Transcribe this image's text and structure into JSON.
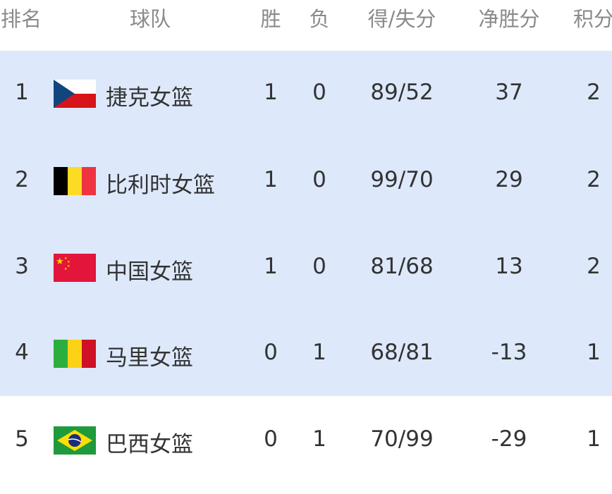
{
  "header": {
    "rank": "排名",
    "team": "球队",
    "wins": "胜",
    "losses": "负",
    "score": "得/失分",
    "diff": "净胜分",
    "points": "积分"
  },
  "colors": {
    "highlight": "#dde9fb",
    "header_text": "#8a8a8a"
  },
  "rows": [
    {
      "rank": "1",
      "team": "捷克女篮",
      "flag": "czech-flag",
      "wins": "1",
      "losses": "0",
      "score": "89/52",
      "diff": "37",
      "points": "2",
      "highlighted": true
    },
    {
      "rank": "2",
      "team": "比利时女篮",
      "flag": "belgium-flag",
      "wins": "1",
      "losses": "0",
      "score": "99/70",
      "diff": "29",
      "points": "2",
      "highlighted": true
    },
    {
      "rank": "3",
      "team": "中国女篮",
      "flag": "china-flag",
      "wins": "1",
      "losses": "0",
      "score": "81/68",
      "diff": "13",
      "points": "2",
      "highlighted": true
    },
    {
      "rank": "4",
      "team": "马里女篮",
      "flag": "mali-flag",
      "wins": "0",
      "losses": "1",
      "score": "68/81",
      "diff": "-13",
      "points": "1",
      "highlighted": true
    },
    {
      "rank": "5",
      "team": "巴西女篮",
      "flag": "brazil-flag",
      "wins": "0",
      "losses": "1",
      "score": "70/99",
      "diff": "-29",
      "points": "1",
      "highlighted": false
    }
  ]
}
